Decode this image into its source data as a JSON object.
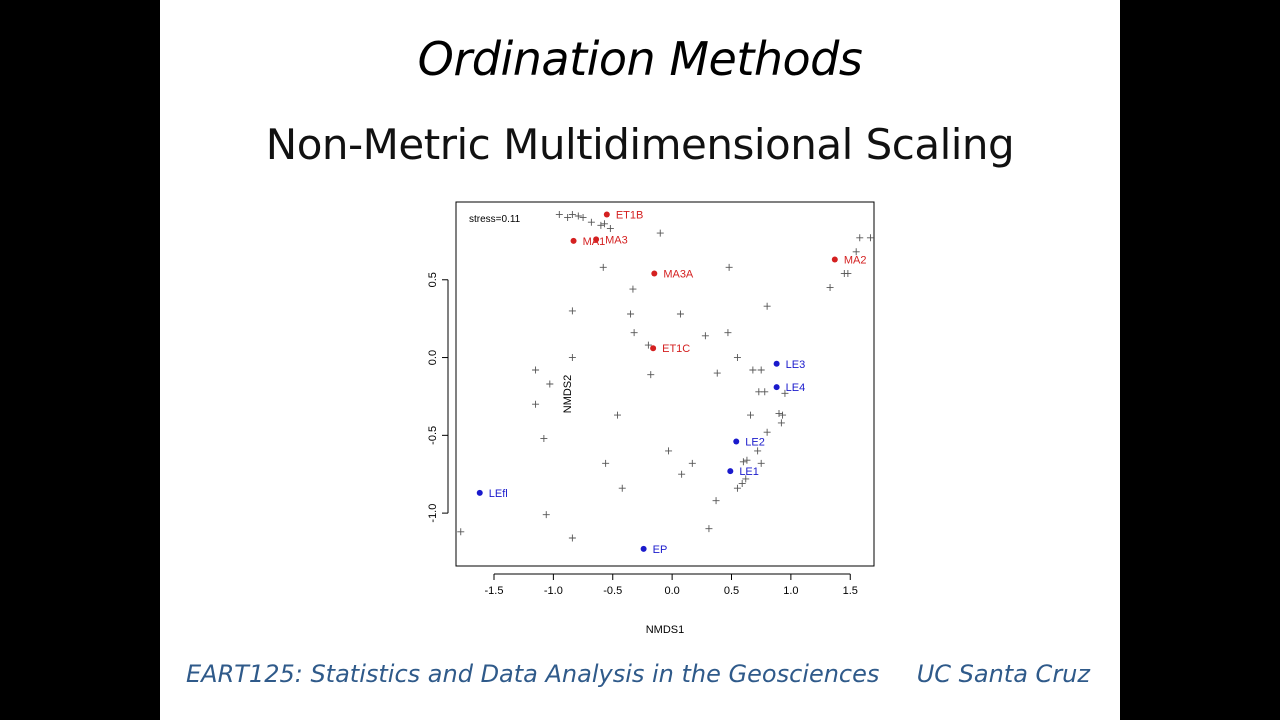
{
  "slide": {
    "title": "Ordination Methods",
    "subtitle": "Non-Metric Multidimensional Scaling",
    "footer_left": "EART125: Statistics and Data Analysis in the Geosciences",
    "footer_right": "UC Santa Cruz"
  },
  "chart_data": {
    "type": "scatter",
    "title": "",
    "xlabel": "NMDS1",
    "ylabel": "NMDS2",
    "xlim": [
      -1.82,
      1.7
    ],
    "ylim": [
      -1.34,
      1.0
    ],
    "xticks": [
      -1.5,
      -1.0,
      -0.5,
      0.0,
      0.5,
      1.0,
      1.5
    ],
    "yticks": [
      -1.0,
      -0.5,
      0.0,
      0.5
    ],
    "xtick_labels": [
      "-1.5",
      "-1.0",
      "-0.5",
      "0.0",
      "0.5",
      "1.0",
      "1.5"
    ],
    "ytick_labels": [
      "-1.0",
      "-0.5",
      "0.0",
      "0.5"
    ],
    "grid": false,
    "annotation": "stress=0.11",
    "colors": {
      "red": "#d42020",
      "blue": "#1a1acc",
      "cross": "#555555"
    },
    "labeled_points": [
      {
        "label": "ET1B",
        "x": -0.55,
        "y": 0.92,
        "color": "red"
      },
      {
        "label": "MA1",
        "x": -0.83,
        "y": 0.75,
        "color": "red"
      },
      {
        "label": "MA3",
        "x": -0.64,
        "y": 0.76,
        "color": "red"
      },
      {
        "label": "MA3A",
        "x": -0.15,
        "y": 0.54,
        "color": "red"
      },
      {
        "label": "MA2",
        "x": 1.37,
        "y": 0.63,
        "color": "red"
      },
      {
        "label": "ET1C",
        "x": -0.16,
        "y": 0.06,
        "color": "red"
      },
      {
        "label": "LE3",
        "x": 0.88,
        "y": -0.04,
        "color": "blue"
      },
      {
        "label": "LE4",
        "x": 0.88,
        "y": -0.19,
        "color": "blue"
      },
      {
        "label": "LE2",
        "x": 0.54,
        "y": -0.54,
        "color": "blue"
      },
      {
        "label": "LE1",
        "x": 0.49,
        "y": -0.73,
        "color": "blue"
      },
      {
        "label": "LEfl",
        "x": -1.62,
        "y": -0.87,
        "color": "blue"
      },
      {
        "label": "EP",
        "x": -0.24,
        "y": -1.23,
        "color": "blue"
      }
    ],
    "crosses": [
      [
        -0.95,
        0.92
      ],
      [
        -0.88,
        0.9
      ],
      [
        -0.84,
        0.92
      ],
      [
        -0.79,
        0.91
      ],
      [
        -0.75,
        0.9
      ],
      [
        -0.68,
        0.87
      ],
      [
        -0.6,
        0.85
      ],
      [
        -0.57,
        0.86
      ],
      [
        -0.52,
        0.83
      ],
      [
        -0.1,
        0.8
      ],
      [
        -0.58,
        0.58
      ],
      [
        0.48,
        0.58
      ],
      [
        -0.33,
        0.44
      ],
      [
        -0.35,
        0.28
      ],
      [
        -0.84,
        0.3
      ],
      [
        0.07,
        0.28
      ],
      [
        -0.32,
        0.16
      ],
      [
        0.28,
        0.14
      ],
      [
        0.47,
        0.16
      ],
      [
        -0.2,
        0.08
      ],
      [
        -0.84,
        0.0
      ],
      [
        0.55,
        0.0
      ],
      [
        -1.15,
        -0.08
      ],
      [
        -0.18,
        -0.11
      ],
      [
        0.38,
        -0.1
      ],
      [
        0.68,
        -0.08
      ],
      [
        0.75,
        -0.08
      ],
      [
        -1.03,
        -0.17
      ],
      [
        0.73,
        -0.22
      ],
      [
        0.78,
        -0.22
      ],
      [
        0.95,
        -0.23
      ],
      [
        -1.15,
        -0.3
      ],
      [
        -0.46,
        -0.37
      ],
      [
        0.66,
        -0.37
      ],
      [
        0.9,
        -0.36
      ],
      [
        0.93,
        -0.37
      ],
      [
        0.92,
        -0.42
      ],
      [
        0.8,
        -0.48
      ],
      [
        -1.08,
        -0.52
      ],
      [
        -0.03,
        -0.6
      ],
      [
        0.72,
        -0.6
      ],
      [
        0.63,
        -0.66
      ],
      [
        0.6,
        -0.67
      ],
      [
        0.75,
        -0.68
      ],
      [
        -0.56,
        -0.68
      ],
      [
        0.17,
        -0.68
      ],
      [
        0.08,
        -0.75
      ],
      [
        0.62,
        -0.78
      ],
      [
        0.59,
        -0.81
      ],
      [
        0.55,
        -0.84
      ],
      [
        -0.42,
        -0.84
      ],
      [
        0.37,
        -0.92
      ],
      [
        -1.06,
        -1.01
      ],
      [
        0.31,
        -1.1
      ],
      [
        -1.78,
        -1.12
      ],
      [
        -0.84,
        -1.16
      ],
      [
        1.58,
        0.77
      ],
      [
        1.67,
        0.77
      ],
      [
        1.55,
        0.68
      ],
      [
        1.48,
        0.54
      ],
      [
        1.45,
        0.54
      ],
      [
        1.33,
        0.45
      ],
      [
        0.8,
        0.33
      ]
    ]
  }
}
